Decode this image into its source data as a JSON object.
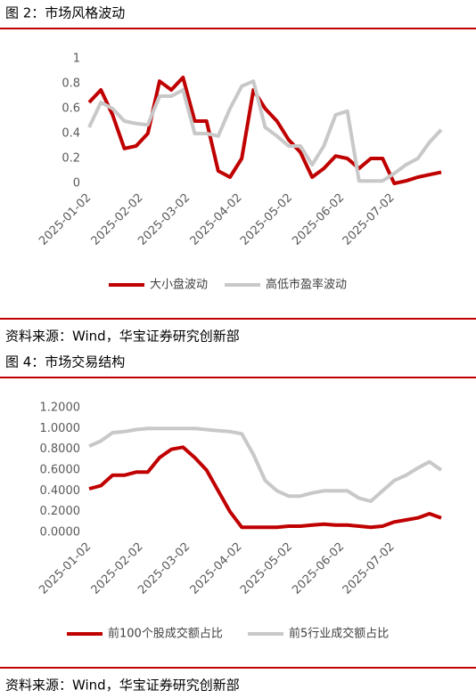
{
  "chart_data": [
    {
      "type": "line",
      "title": "图 2：市场风格波动",
      "source": "资料来源：Wind，华宝证券研究创新部",
      "x": [
        "2025-01-02",
        "2025-01-09",
        "2025-01-16",
        "2025-01-23",
        "2025-01-30",
        "2025-02-06",
        "2025-02-13",
        "2025-02-20",
        "2025-02-27",
        "2025-03-06",
        "2025-03-13",
        "2025-03-20",
        "2025-03-27",
        "2025-04-03",
        "2025-04-10",
        "2025-04-17",
        "2025-04-24",
        "2025-05-01",
        "2025-05-08",
        "2025-05-15",
        "2025-05-22",
        "2025-05-29",
        "2025-06-05",
        "2025-06-12",
        "2025-06-19",
        "2025-06-26",
        "2025-07-03",
        "2025-07-10",
        "2025-07-17",
        "2025-07-24",
        "2025-07-31"
      ],
      "series": [
        {
          "name": "大小盘波动",
          "color": "#c00000",
          "values": [
            0.65,
            0.75,
            0.55,
            0.28,
            0.3,
            0.4,
            0.82,
            0.75,
            0.85,
            0.5,
            0.5,
            0.1,
            0.05,
            0.2,
            0.75,
            0.6,
            0.5,
            0.35,
            0.25,
            0.05,
            0.12,
            0.22,
            0.2,
            0.12,
            0.2,
            0.2,
            0.0,
            0.02,
            0.05,
            0.07,
            0.09
          ]
        },
        {
          "name": "高低市盈率波动",
          "color": "#c8c8c8",
          "values": [
            0.45,
            0.65,
            0.6,
            0.5,
            0.48,
            0.47,
            0.7,
            0.7,
            0.75,
            0.4,
            0.4,
            0.38,
            0.6,
            0.78,
            0.82,
            0.45,
            0.38,
            0.3,
            0.3,
            0.15,
            0.3,
            0.55,
            0.58,
            0.02,
            0.02,
            0.02,
            0.08,
            0.15,
            0.2,
            0.33,
            0.43
          ]
        }
      ],
      "xlim": [
        "2025-01-02",
        "2025-07-31"
      ],
      "xticks": [
        "2025-01-02",
        "2025-02-02",
        "2025-03-02",
        "2025-04-02",
        "2025-05-02",
        "2025-06-02",
        "2025-07-02"
      ],
      "ylim": [
        0,
        1
      ],
      "yticks": [
        0,
        0.2,
        0.4,
        0.6,
        0.8,
        1
      ]
    },
    {
      "type": "line",
      "title": "图 4：市场交易结构",
      "source": "资料来源：Wind，华宝证券研究创新部",
      "x": [
        "2025-01-02",
        "2025-01-09",
        "2025-01-16",
        "2025-01-23",
        "2025-01-30",
        "2025-02-06",
        "2025-02-13",
        "2025-02-20",
        "2025-02-27",
        "2025-03-06",
        "2025-03-13",
        "2025-03-20",
        "2025-03-27",
        "2025-04-03",
        "2025-04-10",
        "2025-04-17",
        "2025-04-24",
        "2025-05-01",
        "2025-05-08",
        "2025-05-15",
        "2025-05-22",
        "2025-05-29",
        "2025-06-05",
        "2025-06-12",
        "2025-06-19",
        "2025-06-26",
        "2025-07-03",
        "2025-07-10",
        "2025-07-17",
        "2025-07-24",
        "2025-07-31"
      ],
      "series": [
        {
          "name": "前100个股成交额占比",
          "color": "#c00000",
          "values": [
            0.42,
            0.45,
            0.55,
            0.55,
            0.58,
            0.58,
            0.72,
            0.8,
            0.82,
            0.72,
            0.6,
            0.4,
            0.2,
            0.05,
            0.05,
            0.05,
            0.05,
            0.06,
            0.06,
            0.07,
            0.08,
            0.07,
            0.07,
            0.06,
            0.05,
            0.06,
            0.1,
            0.12,
            0.14,
            0.18,
            0.14
          ]
        },
        {
          "name": "前5行业成交额占比",
          "color": "#c8c8c8",
          "values": [
            0.83,
            0.88,
            0.96,
            0.97,
            0.99,
            1.0,
            1.0,
            1.0,
            1.0,
            1.0,
            0.99,
            0.98,
            0.97,
            0.95,
            0.75,
            0.5,
            0.4,
            0.35,
            0.35,
            0.38,
            0.4,
            0.4,
            0.4,
            0.33,
            0.3,
            0.4,
            0.5,
            0.55,
            0.62,
            0.68,
            0.6
          ]
        }
      ],
      "xlim": [
        "2025-01-02",
        "2025-07-31"
      ],
      "xticks": [
        "2025-01-02",
        "2025-02-02",
        "2025-03-02",
        "2025-04-02",
        "2025-05-02",
        "2025-06-02",
        "2025-07-02"
      ],
      "ylim": [
        0,
        1.2
      ],
      "yticks": [
        {
          "value": 0,
          "label": "0.0000"
        },
        {
          "value": 0.2,
          "label": "0.2000"
        },
        {
          "value": 0.4,
          "label": "0.4000"
        },
        {
          "value": 0.6,
          "label": "0.6000"
        },
        {
          "value": 0.8,
          "label": "0.8000"
        },
        {
          "value": 1,
          "label": "1.0000"
        },
        {
          "value": 1.2,
          "label": "1.2000"
        }
      ]
    }
  ]
}
